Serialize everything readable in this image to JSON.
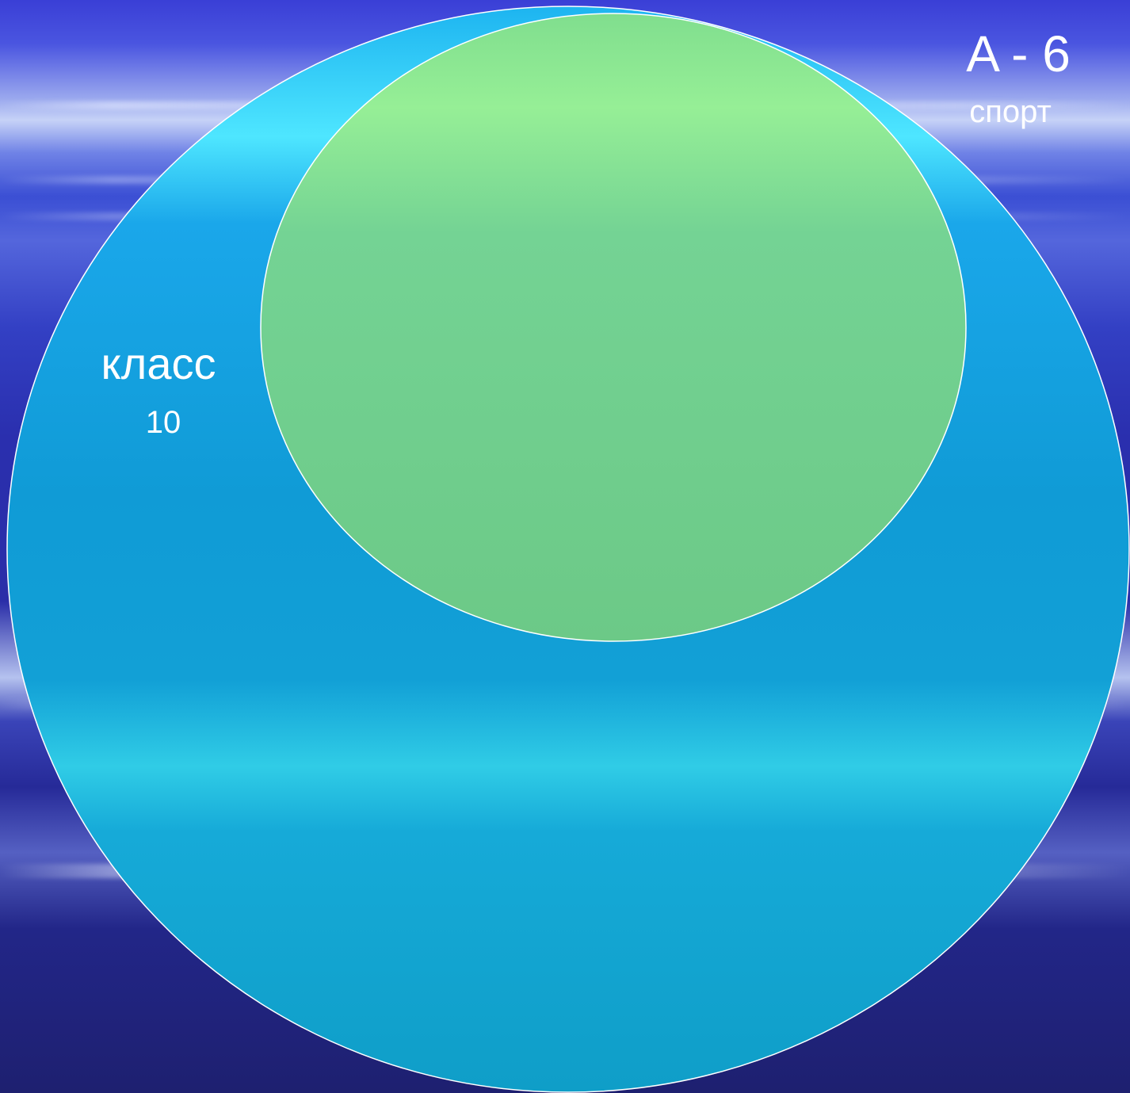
{
  "diagram": {
    "outer_set": {
      "name": "класс",
      "count": "10",
      "fill": "#12a8dc"
    },
    "inner_set": {
      "title": "A - 6",
      "name": "спорт",
      "fill": "#78d08a"
    },
    "stroke": "#ffffff"
  }
}
